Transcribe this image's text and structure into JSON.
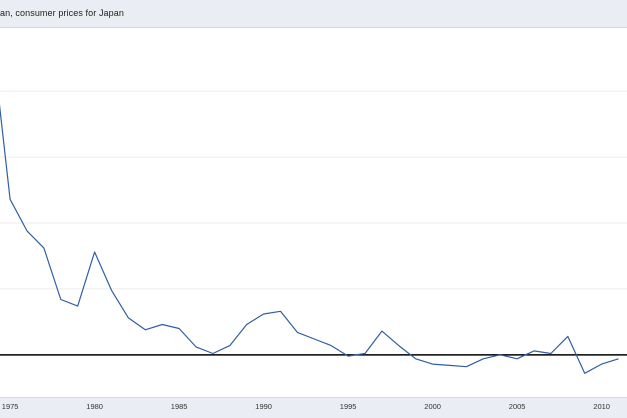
{
  "header": {
    "title": "an, consumer prices for Japan"
  },
  "colors": {
    "series_line": "#2f5fa3",
    "zero_line": "#000000",
    "gridline": "#eeeeee",
    "band_background": "#eaedf3"
  },
  "chart_data": {
    "type": "line",
    "title": "an, consumer prices for Japan",
    "xlabel": "",
    "ylabel": "",
    "grid": true,
    "xlim": [
      1974.4,
      2011.5
    ],
    "ylim": [
      -3.2,
      24.8
    ],
    "x_ticks": [
      1975,
      1980,
      1985,
      1990,
      1995,
      2000,
      2005,
      2010
    ],
    "x_tick_labels": [
      "1975",
      "1980",
      "1985",
      "1990",
      "1995",
      "2000",
      "2005",
      "2010"
    ],
    "y_gridlines": [
      5,
      10,
      15,
      20
    ],
    "baseline": 0,
    "series": [
      {
        "x": [
          1974,
          1975,
          1976,
          1977,
          1978,
          1979,
          1980,
          1981,
          1982,
          1983,
          1984,
          1985,
          1986,
          1987,
          1988,
          1989,
          1990,
          1991,
          1992,
          1993,
          1994,
          1995,
          1996,
          1997,
          1998,
          1999,
          2000,
          2001,
          2002,
          2003,
          2004,
          2005,
          2006,
          2007,
          2008,
          2009,
          2010,
          2011
        ],
        "y": [
          23.2,
          11.8,
          9.4,
          8.1,
          4.2,
          3.7,
          7.8,
          4.9,
          2.8,
          1.9,
          2.3,
          2.0,
          0.6,
          0.1,
          0.7,
          2.3,
          3.1,
          3.3,
          1.7,
          1.2,
          0.7,
          -0.1,
          0.1,
          1.8,
          0.7,
          -0.3,
          -0.7,
          -0.8,
          -0.9,
          -0.3,
          0.0,
          -0.3,
          0.3,
          0.1,
          1.4,
          -1.4,
          -0.7,
          -0.3
        ]
      }
    ]
  }
}
